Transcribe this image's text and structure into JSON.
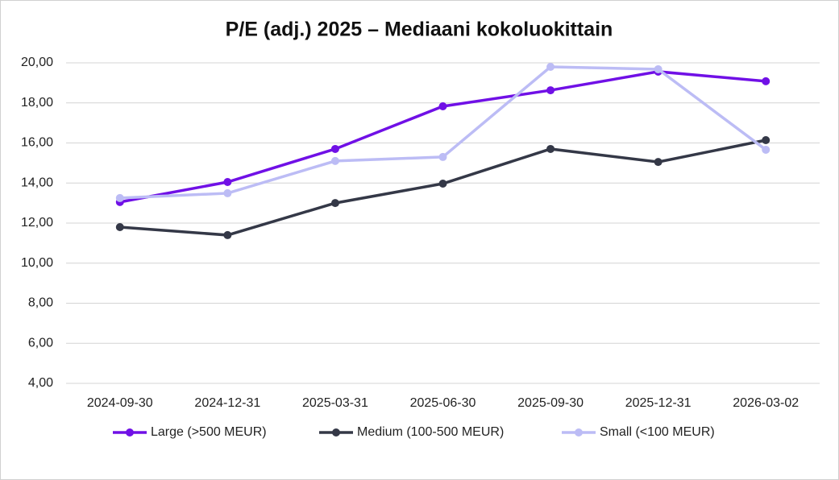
{
  "chart_data": {
    "type": "line",
    "title": "P/E (adj.) 2025 – Mediaani kokoluokittain",
    "categories": [
      "2024-09-30",
      "2024-12-31",
      "2025-03-31",
      "2025-06-30",
      "2025-09-30",
      "2025-12-31",
      "2026-03-02"
    ],
    "series": [
      {
        "name": "Large (>500 MEUR)",
        "color": "#7010e6",
        "values": [
          13.05,
          14.05,
          15.7,
          17.83,
          18.63,
          19.56,
          19.08
        ]
      },
      {
        "name": "Medium (100-500 MEUR)",
        "color": "#343847",
        "values": [
          11.8,
          11.4,
          13.0,
          13.97,
          15.7,
          15.05,
          16.14
        ]
      },
      {
        "name": "Small (<100 MEUR)",
        "color": "#bcbcf5",
        "values": [
          13.25,
          13.49,
          15.1,
          15.3,
          19.8,
          19.68,
          15.66
        ]
      }
    ],
    "ylim": [
      4,
      20
    ],
    "yticks": [
      {
        "value": 4,
        "label": "4,00"
      },
      {
        "value": 6,
        "label": "6,00"
      },
      {
        "value": 8,
        "label": "8,00"
      },
      {
        "value": 10,
        "label": "10,00"
      },
      {
        "value": 12,
        "label": "12,00"
      },
      {
        "value": 14,
        "label": "14,00"
      },
      {
        "value": 16,
        "label": "16,00"
      },
      {
        "value": 18,
        "label": "18,00"
      },
      {
        "value": 20,
        "label": "20,00"
      }
    ],
    "grid": true,
    "legend": "bottom"
  }
}
